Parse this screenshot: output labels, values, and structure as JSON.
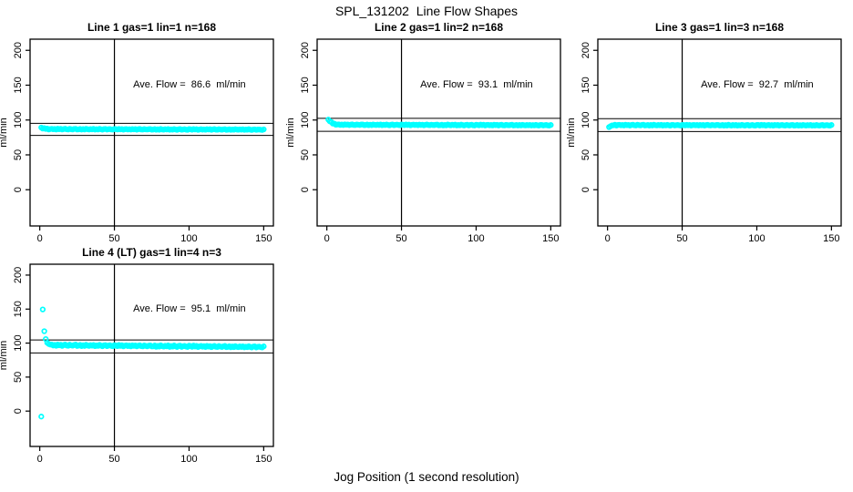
{
  "figure": {
    "title": "SPL_131202  Line Flow Shapes",
    "xlabel": "Jog Position (1 second resolution)",
    "colors": {
      "points": "#00ffff",
      "axis": "#000000",
      "background": "#ffffff"
    }
  },
  "chart_data": [
    {
      "type": "scatter",
      "title": "Line 1 gas=1 lin=1 n=168",
      "annotation": "Ave. Flow =  86.6  ml/min",
      "ave_flow": 86.6,
      "ylabel": "ml/min",
      "xticks": [
        0,
        50,
        100,
        150
      ],
      "yticks": [
        0,
        50,
        100,
        150,
        200
      ],
      "xlim": [
        -6.5,
        156.5
      ],
      "ylim": [
        -52,
        216
      ],
      "vline_x": 50,
      "hlines": [
        95.3,
        77.9
      ],
      "grid": false,
      "x_start": 1,
      "x_step": 1,
      "y": [
        89.2,
        87.8,
        88.3,
        87.2,
        87.8,
        86.5,
        87.1,
        87.4,
        86.7,
        87.2,
        86.5,
        87.5,
        86.9,
        87.3,
        86.4,
        87.1,
        87.5,
        86.7,
        86.5,
        87.4,
        86.9,
        86.5,
        87.2,
        87.4,
        86.4,
        86.6,
        87.2,
        86.3,
        87.0,
        86.4,
        87.4,
        86.8,
        86.5,
        87.1,
        86.6,
        87.3,
        86.3,
        86.9,
        86.5,
        87.3,
        86.7,
        86.2,
        87.0,
        87.2,
        86.3,
        86.8,
        87.1,
        86.5,
        86.3,
        87.2,
        87.0,
        86.4,
        87.2,
        86.6,
        87.1,
        86.2,
        86.8,
        87.1,
        86.5,
        86.9,
        86.3,
        87.1,
        86.6,
        87.0,
        86.2,
        86.8,
        87.2,
        86.5,
        86.3,
        87.0,
        86.6,
        86.4,
        86.9,
        87.1,
        86.2,
        86.3,
        87.0,
        86.0,
        86.7,
        86.1,
        87.2,
        86.5,
        86.2,
        86.9,
        86.4,
        87.1,
        86.0,
        86.6,
        86.2,
        87.1,
        86.4,
        85.9,
        86.7,
        87.0,
        86.0,
        86.5,
        86.9,
        86.2,
        85.9,
        87.0,
        86.7,
        86.1,
        87.1,
        86.4,
        86.9,
        85.9,
        86.5,
        86.8,
        86.2,
        86.6,
        86.0,
        86.9,
        86.4,
        86.8,
        85.9,
        86.6,
        87.0,
        86.2,
        86.0,
        86.8,
        86.4,
        86.1,
        86.6,
        86.9,
        85.9,
        86.2,
        86.7,
        85.9,
        86.5,
        86.0,
        86.8,
        86.3,
        86.0,
        86.6,
        86.2,
        86.7,
        85.9,
        86.4,
        86.0,
        86.8,
        86.2,
        85.8,
        86.5,
        86.6,
        85.9,
        86.3,
        86.5,
        86.0,
        85.8,
        86.6
      ]
    },
    {
      "type": "scatter",
      "title": "Line 2 gas=1 lin=2 n=168",
      "annotation": "Ave. Flow =  93.1  ml/min",
      "ave_flow": 93.1,
      "ylabel": "ml/min",
      "xticks": [
        0,
        50,
        100,
        150
      ],
      "yticks": [
        0,
        50,
        100,
        150,
        200
      ],
      "xlim": [
        -6.5,
        156.5
      ],
      "ylim": [
        -52,
        216
      ],
      "vline_x": 50,
      "hlines": [
        102.4,
        83.8
      ],
      "grid": false,
      "x_start": 1,
      "x_step": 1,
      "y": [
        100.6,
        98.1,
        97.2,
        95.0,
        94.9,
        93.2,
        93.6,
        93.8,
        93.0,
        93.5,
        92.8,
        93.8,
        93.2,
        93.6,
        92.7,
        93.4,
        93.8,
        93.0,
        92.8,
        93.7,
        93.2,
        92.8,
        93.5,
        93.7,
        92.7,
        92.9,
        93.5,
        92.6,
        93.3,
        92.7,
        93.7,
        93.1,
        92.8,
        93.4,
        92.9,
        93.6,
        92.6,
        93.2,
        92.8,
        93.6,
        93.0,
        92.5,
        93.3,
        93.5,
        92.6,
        93.1,
        93.4,
        92.8,
        92.6,
        93.5,
        93.3,
        92.7,
        93.5,
        92.9,
        93.4,
        92.5,
        93.1,
        93.4,
        92.8,
        93.2,
        92.6,
        93.4,
        92.9,
        93.3,
        92.5,
        93.1,
        93.5,
        92.8,
        92.6,
        93.3,
        92.9,
        92.7,
        93.2,
        93.4,
        92.5,
        92.6,
        93.3,
        92.3,
        93.0,
        92.4,
        93.5,
        92.8,
        92.5,
        93.2,
        92.7,
        93.4,
        92.3,
        92.9,
        92.5,
        93.4,
        92.7,
        92.2,
        93.0,
        93.3,
        92.3,
        92.8,
        93.2,
        92.5,
        92.2,
        93.3,
        93.0,
        92.4,
        93.4,
        92.7,
        93.2,
        92.2,
        92.8,
        93.1,
        92.5,
        92.9,
        92.3,
        93.2,
        92.7,
        93.1,
        92.2,
        92.9,
        93.3,
        92.5,
        92.3,
        93.1,
        92.7,
        92.4,
        92.9,
        93.2,
        92.2,
        92.5,
        93.0,
        92.2,
        92.8,
        92.3,
        93.1,
        92.6,
        92.3,
        92.9,
        92.5,
        93.0,
        92.2,
        92.7,
        92.3,
        93.1,
        92.5,
        92.1,
        92.8,
        92.9,
        92.2,
        92.6,
        92.8,
        92.3,
        92.1,
        92.9
      ]
    },
    {
      "type": "scatter",
      "title": "Line 3 gas=1 lin=3 n=168",
      "annotation": "Ave. Flow =  92.7  ml/min",
      "ave_flow": 92.7,
      "ylabel": "ml/min",
      "xticks": [
        0,
        50,
        100,
        150
      ],
      "yticks": [
        0,
        50,
        100,
        150,
        200
      ],
      "xlim": [
        -6.5,
        156.5
      ],
      "ylim": [
        -52,
        216
      ],
      "vline_x": 50,
      "hlines": [
        102.0,
        83.4
      ],
      "grid": false,
      "x_start": 1,
      "x_step": 1,
      "y": [
        89.8,
        91.2,
        92.3,
        92.5,
        93.2,
        92.1,
        92.8,
        93.1,
        92.4,
        92.9,
        92.2,
        93.2,
        92.6,
        93.0,
        92.1,
        92.8,
        93.3,
        92.5,
        92.2,
        93.2,
        92.7,
        92.3,
        92.9,
        93.2,
        92.2,
        92.4,
        93.0,
        92.1,
        92.8,
        92.2,
        93.2,
        92.6,
        92.3,
        92.9,
        92.4,
        93.1,
        92.1,
        92.7,
        92.3,
        93.1,
        92.5,
        92.0,
        92.8,
        93.0,
        92.2,
        92.6,
        92.9,
        92.4,
        92.1,
        93.0,
        92.8,
        92.3,
        93.1,
        92.5,
        93.0,
        92.1,
        92.7,
        92.9,
        92.4,
        92.8,
        92.2,
        93.0,
        92.5,
        92.9,
        92.1,
        92.7,
        93.1,
        92.4,
        92.2,
        93.0,
        92.6,
        92.3,
        92.8,
        93.0,
        92.2,
        92.3,
        93.0,
        91.9,
        92.7,
        92.1,
        93.2,
        92.5,
        92.1,
        92.8,
        92.3,
        93.0,
        92.0,
        92.6,
        92.2,
        93.1,
        92.4,
        91.9,
        92.7,
        92.9,
        92.0,
        92.5,
        92.9,
        92.2,
        91.9,
        93.0,
        92.8,
        92.1,
        93.1,
        92.4,
        92.9,
        91.9,
        92.6,
        92.9,
        92.2,
        92.7,
        92.0,
        93.0,
        92.4,
        92.8,
        92.0,
        92.6,
        93.0,
        92.3,
        92.1,
        92.9,
        92.5,
        92.1,
        92.7,
        93.0,
        92.0,
        92.2,
        92.8,
        91.9,
        92.6,
        92.1,
        92.9,
        92.4,
        92.1,
        92.7,
        92.3,
        92.8,
        92.0,
        92.5,
        92.1,
        92.9,
        92.3,
        91.9,
        92.6,
        92.8,
        92.0,
        92.4,
        92.7,
        92.2,
        92.0,
        92.8
      ]
    },
    {
      "type": "scatter",
      "title": "Line 4 (LT) gas=1 lin=4 n=3",
      "annotation": "Ave. Flow =  95.1  ml/min",
      "ave_flow": 95.1,
      "ylabel": "ml/min",
      "xticks": [
        0,
        50,
        100,
        150
      ],
      "yticks": [
        0,
        50,
        100,
        150,
        200
      ],
      "xlim": [
        -6.5,
        156.5
      ],
      "ylim": [
        -52,
        216
      ],
      "vline_x": 50,
      "hlines": [
        104.6,
        85.6
      ],
      "grid": false,
      "x_start": 1,
      "x_step": 1,
      "y": [
        -8.0,
        149.5,
        117.5,
        106.0,
        100.5,
        98.8,
        97.8,
        97.8,
        96.5,
        97.4,
        96.1,
        98.0,
        96.8,
        97.6,
        95.9,
        97.2,
        98.0,
        96.5,
        96.1,
        97.7,
        96.8,
        96.2,
        97.3,
        97.8,
        95.8,
        96.3,
        97.4,
        95.7,
        96.9,
        95.8,
        97.6,
        96.5,
        95.9,
        97.0,
        96.2,
        97.3,
        95.6,
        96.6,
        95.9,
        97.4,
        96.2,
        95.4,
        96.7,
        97.0,
        95.6,
        96.3,
        96.9,
        95.8,
        95.4,
        97.0,
        96.6,
        95.6,
        97.1,
        96.0,
        96.9,
        95.2,
        96.2,
        96.7,
        95.7,
        96.4,
        95.3,
        96.8,
        95.9,
        96.5,
        95.2,
        96.2,
        96.8,
        95.6,
        95.3,
        96.6,
        95.9,
        95.3,
        96.2,
        96.6,
        95.1,
        95.3,
        96.5,
        94.6,
        96.0,
        94.8,
        96.8,
        95.5,
        94.9,
        96.1,
        95.2,
        96.5,
        94.5,
        95.7,
        94.9,
        96.5,
        95.2,
        94.3,
        95.8,
        96.2,
        94.5,
        95.4,
        96.0,
        94.8,
        94.3,
        96.2,
        95.7,
        94.6,
        96.3,
        95.0,
        96.0,
        94.2,
        95.3,
        95.8,
        94.7,
        95.5,
        94.3,
        96.0,
        94.9,
        95.6,
        94.1,
        95.2,
        96.0,
        94.6,
        94.3,
        95.7,
        94.9,
        94.3,
        95.3,
        95.8,
        94.0,
        94.4,
        95.4,
        93.9,
        95.0,
        94.0,
        95.6,
        94.6,
        94.1,
        95.1,
        94.3,
        95.3,
        93.8,
        94.7,
        94.1,
        95.4,
        94.3,
        93.6,
        94.8,
        95.1,
        93.7,
        94.4,
        94.9,
        94.0,
        93.6,
        95.1
      ]
    }
  ]
}
